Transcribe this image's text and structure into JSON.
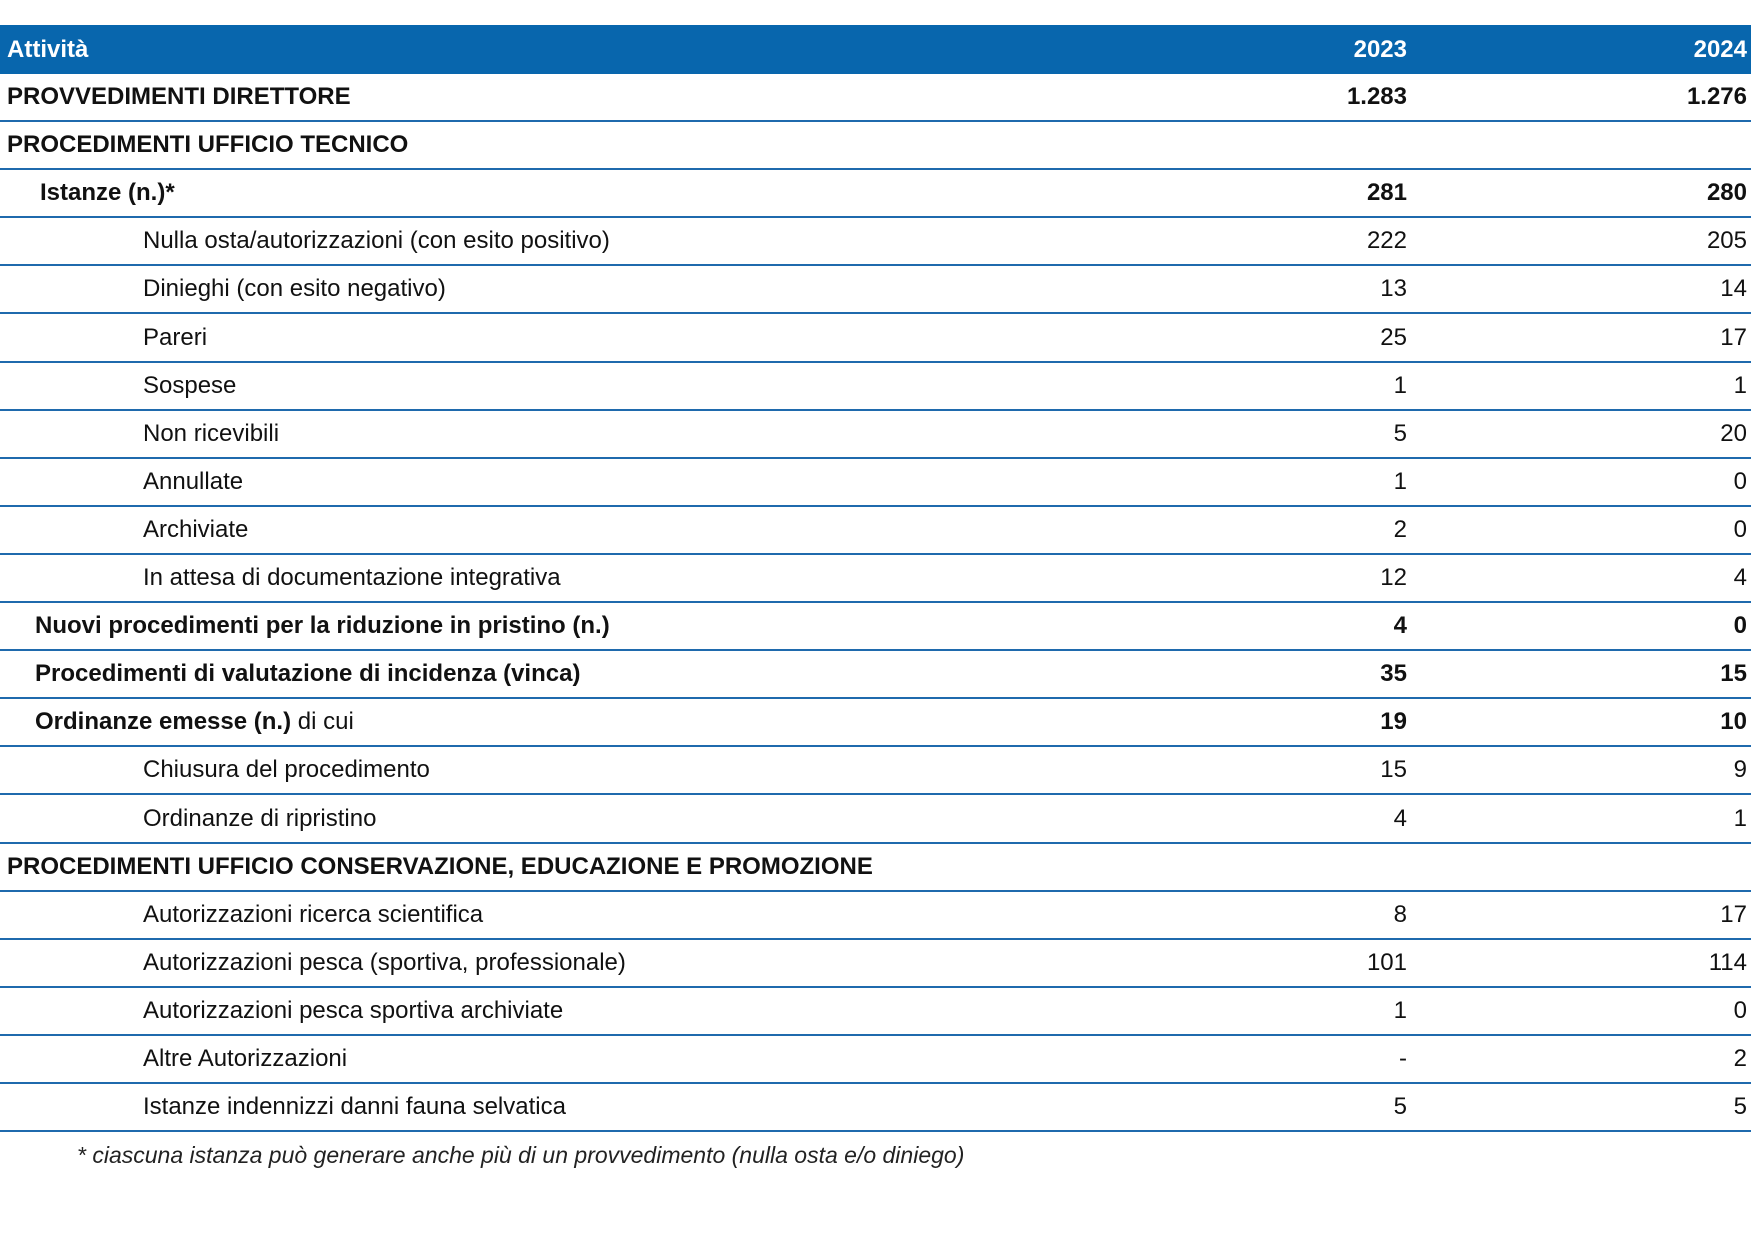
{
  "table": {
    "header": [
      "Attività",
      "2023",
      "2024"
    ],
    "rows": [
      [
        "PROVVEDIMENTI DIRETTORE",
        "1.283",
        "1.276"
      ],
      [
        "PROCEDIMENTI UFFICIO TECNICO"
      ],
      [
        "Istanze (n.)*",
        281,
        280
      ],
      [
        "Nulla osta/autorizzazioni (con esito positivo)",
        222,
        205
      ],
      [
        "Dinieghi (con esito negativo)",
        13,
        14
      ],
      [
        "Pareri",
        25,
        17
      ],
      [
        "Sospese",
        1,
        1
      ],
      [
        "Non ricevibili",
        5,
        20
      ],
      [
        "Annullate",
        1,
        0
      ],
      [
        "Archiviate",
        2,
        0
      ],
      [
        "In attesa di documentazione integrativa",
        12,
        4
      ],
      [
        "Nuovi procedimenti per la riduzione in pristino (n.)",
        4,
        0
      ],
      [
        "Procedimenti di valutazione di incidenza (vinca)",
        35,
        15
      ],
      [
        [
          "Ordinanze emesse (n.)",
          "di cui"
        ],
        19,
        10
      ],
      [
        "Chiusura del procedimento",
        15,
        9
      ],
      [
        "Ordinanze di ripristino",
        4,
        1
      ],
      [
        "PROCEDIMENTI UFFICIO CONSERVAZIONE, EDUCAZIONE E PROMOZIONE"
      ],
      [
        "Autorizzazioni ricerca scientifica",
        8,
        17
      ],
      [
        "Autorizzazioni pesca (sportiva, professionale)",
        101,
        114
      ],
      [
        "Autorizzazioni pesca sportiva archiviate",
        1,
        0
      ],
      [
        "Altre Autorizzazioni",
        "-",
        2
      ],
      [
        "Istanze indennizzi danni fauna selvatica",
        5,
        5
      ]
    ]
  },
  "footnote": "* ciascuna istanza può generare anche più di un provvedimento (nulla osta e/o diniego)"
}
